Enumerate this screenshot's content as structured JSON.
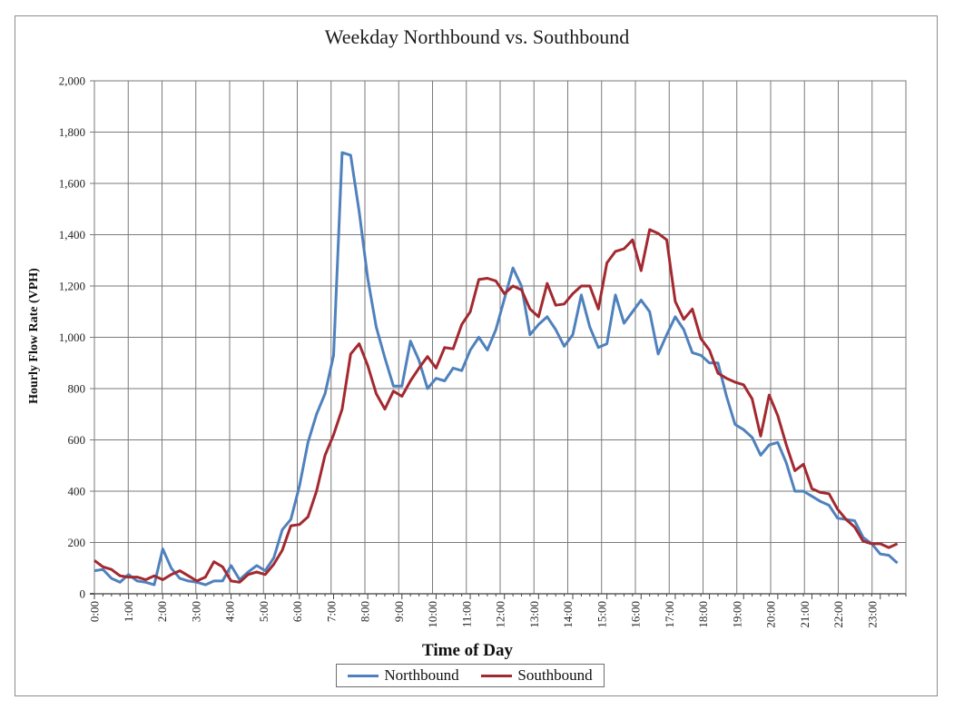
{
  "colors": {
    "northbound": "#4f81bd",
    "southbound": "#a2292f",
    "grid": "#7a7a7a",
    "plot_border": "#7a7a7a"
  },
  "chart_data": {
    "type": "line",
    "title": "Weekday Northbound vs. Southbound",
    "xlabel": "Time of Day",
    "ylabel": "Hourly Flow Rate (VPH)",
    "ylim": [
      0,
      2000
    ],
    "yticks": [
      "0",
      "200",
      "400",
      "600",
      "800",
      "1,000",
      "1,200",
      "1,400",
      "1,600",
      "1,800",
      "2,000"
    ],
    "xticks": [
      "0:00",
      "1:00",
      "2:00",
      "3:00",
      "4:00",
      "5:00",
      "6:00",
      "7:00",
      "8:00",
      "9:00",
      "10:00",
      "11:00",
      "12:00",
      "13:00",
      "14:00",
      "15:00",
      "16:00",
      "17:00",
      "18:00",
      "19:00",
      "20:00",
      "21:00",
      "22:00",
      "23:00"
    ],
    "x_interval_minutes": 15,
    "grid": true,
    "legend_position": "bottom",
    "series": [
      {
        "name": "Northbound",
        "color": "#4f81bd",
        "values": [
          90,
          95,
          60,
          45,
          75,
          50,
          45,
          35,
          175,
          100,
          60,
          50,
          45,
          35,
          50,
          50,
          110,
          55,
          85,
          110,
          90,
          140,
          250,
          290,
          420,
          590,
          700,
          780,
          930,
          1720,
          1710,
          1490,
          1230,
          1040,
          920,
          810,
          810,
          985,
          910,
          800,
          840,
          830,
          880,
          870,
          950,
          1000,
          950,
          1030,
          1150,
          1270,
          1200,
          1010,
          1050,
          1080,
          1030,
          965,
          1010,
          1165,
          1040,
          960,
          975,
          1165,
          1055,
          1100,
          1145,
          1100,
          935,
          1010,
          1080,
          1030,
          940,
          930,
          900,
          900,
          770,
          660,
          640,
          610,
          540,
          580,
          590,
          510,
          400,
          400,
          380,
          360,
          345,
          295,
          290,
          285,
          220,
          195,
          155,
          150,
          120
        ]
      },
      {
        "name": "Southbound",
        "color": "#a2292f",
        "values": [
          130,
          105,
          95,
          70,
          65,
          65,
          55,
          70,
          55,
          75,
          90,
          70,
          50,
          65,
          125,
          105,
          50,
          45,
          75,
          85,
          75,
          115,
          170,
          265,
          270,
          300,
          400,
          540,
          620,
          720,
          935,
          975,
          890,
          780,
          720,
          790,
          770,
          830,
          880,
          925,
          880,
          960,
          955,
          1050,
          1100,
          1225,
          1230,
          1220,
          1170,
          1200,
          1185,
          1110,
          1080,
          1210,
          1125,
          1130,
          1170,
          1200,
          1200,
          1110,
          1290,
          1335,
          1345,
          1380,
          1260,
          1420,
          1405,
          1380,
          1140,
          1070,
          1110,
          995,
          950,
          860,
          840,
          825,
          815,
          760,
          615,
          775,
          695,
          580,
          480,
          505,
          410,
          395,
          390,
          330,
          290,
          260,
          205,
          195,
          195,
          180,
          195
        ]
      }
    ]
  }
}
